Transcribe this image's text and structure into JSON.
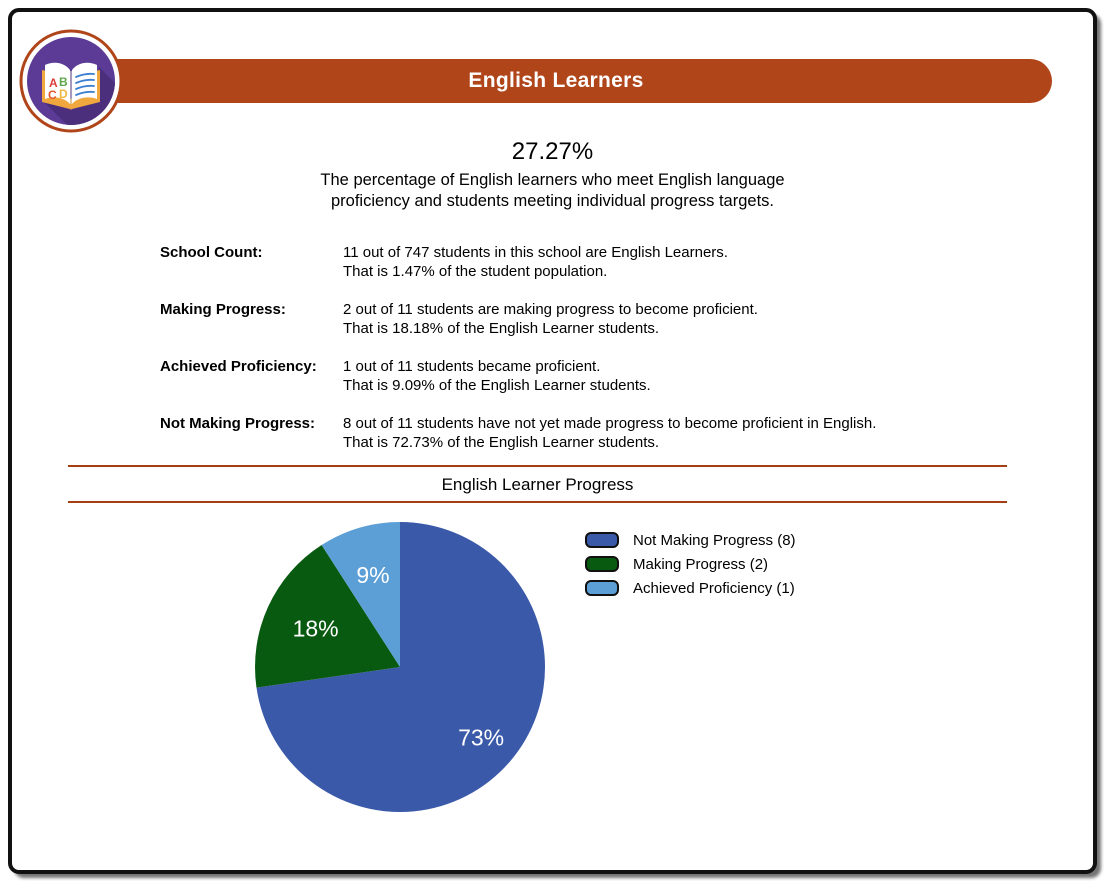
{
  "header": {
    "title": "English Learners",
    "banner_color": "#b0451a",
    "logo_icon": "open-book-abcd-icon",
    "logo_letters": [
      {
        "char": "A",
        "color": "#dd3c38"
      },
      {
        "char": "B",
        "color": "#5fa74a"
      },
      {
        "char": "C",
        "color": "#e4572e"
      },
      {
        "char": "D",
        "color": "#eeb83e"
      }
    ]
  },
  "summary": {
    "percent": "27.27%",
    "description_line1": "The percentage of English learners who meet English language",
    "description_line2": "proficiency and students meeting individual progress targets."
  },
  "stats": [
    {
      "label": "School Count:",
      "line1": "11 out of 747 students in this school are English Learners.",
      "line2": "That is 1.47% of the student population."
    },
    {
      "label": "Making Progress:",
      "line1": "2 out of 11 students are making progress to become proficient.",
      "line2": "That is 18.18% of the English Learner students."
    },
    {
      "label": "Achieved Proficiency:",
      "line1": "1 out of 11 students became proficient.",
      "line2": "That is 9.09% of the English Learner students."
    },
    {
      "label": "Not Making Progress:",
      "line1": "8 out of 11 students have not yet made progress to become proficient in English.",
      "line2": "That is 72.73% of the English Learner students."
    }
  ],
  "section": {
    "title": "English Learner Progress",
    "divider_color": "#a33f10"
  },
  "chart_data": {
    "type": "pie",
    "title": "English Learner Progress",
    "total_students": 11,
    "start_angle_deg": 0,
    "direction": "clockwise",
    "legend_position": "right",
    "slices": [
      {
        "label": "Not Making Progress",
        "value": 8,
        "percent_label": "73%",
        "color": "#3a5aa9",
        "label_radius": 0.74
      },
      {
        "label": "Making Progress",
        "value": 2,
        "percent_label": "18%",
        "color": "#085a10",
        "label_radius": 0.64
      },
      {
        "label": "Achieved Proficiency",
        "value": 1,
        "percent_label": "9%",
        "color": "#5c9fd6",
        "label_radius": 0.66
      }
    ],
    "legend": [
      {
        "label": "Not Making Progress (8)",
        "color": "#3a5aa9"
      },
      {
        "label": "Making Progress (2)",
        "color": "#085a10"
      },
      {
        "label": "Achieved Proficiency (1)",
        "color": "#5c9fd6"
      }
    ]
  }
}
